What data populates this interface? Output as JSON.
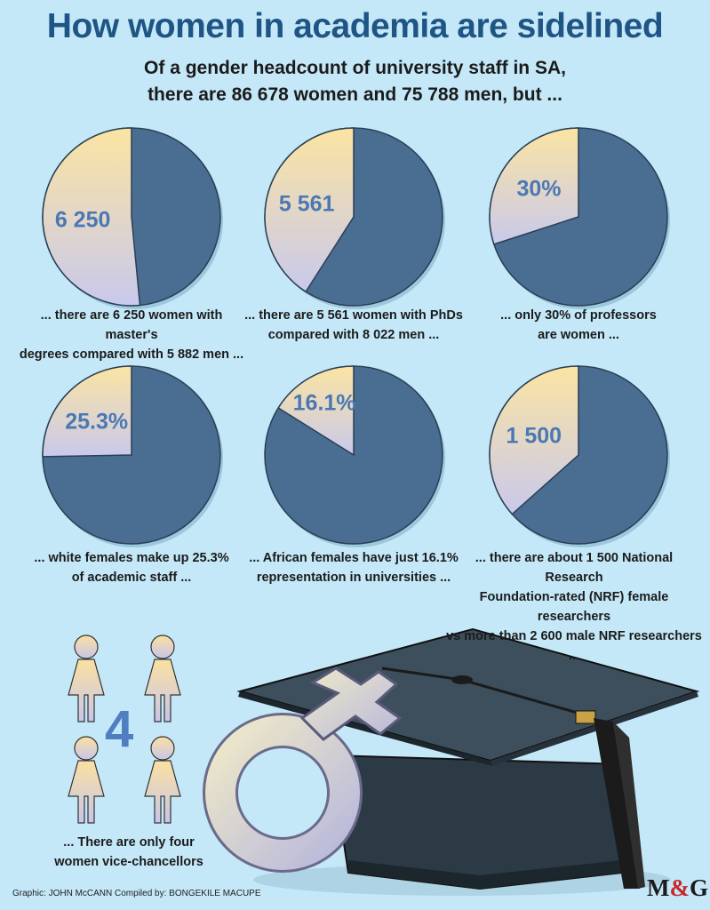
{
  "header": {
    "title": "How women in academia are sidelined",
    "subtitle_line1": "Of a gender headcount of university staff in SA,",
    "subtitle_line2": "there are 86 678 women and 75 788 men, but ..."
  },
  "colors": {
    "background": "#c4e8f8",
    "men_slice": "#4a6d92",
    "women_slice_top": "#fbe4a2",
    "women_slice_bottom": "#c9c9ec"
  },
  "chart_data": [
    {
      "type": "pie",
      "label": "6 250",
      "slices": [
        {
          "name": "women",
          "value": 6250
        },
        {
          "name": "men",
          "value": 5882
        }
      ],
      "caption_lines": [
        "... there are 6 250 women with master's",
        "degrees compared with 5 882 men ..."
      ]
    },
    {
      "type": "pie",
      "label": "5 561",
      "slices": [
        {
          "name": "women",
          "value": 5561
        },
        {
          "name": "men",
          "value": 8022
        }
      ],
      "caption_lines": [
        "... there are 5 561 women with PhDs",
        "compared with 8 022 men ..."
      ]
    },
    {
      "type": "pie",
      "label": "30%",
      "slices": [
        {
          "name": "women",
          "value": 30
        },
        {
          "name": "men",
          "value": 70
        }
      ],
      "caption_lines": [
        "... only 30% of professors",
        "are women ..."
      ]
    },
    {
      "type": "pie",
      "label": "25.3%",
      "slices": [
        {
          "name": "women",
          "value": 25.3
        },
        {
          "name": "men",
          "value": 74.7
        }
      ],
      "caption_lines": [
        "... white females make up 25.3%",
        "of academic staff ..."
      ]
    },
    {
      "type": "pie",
      "label": "16.1%",
      "slices": [
        {
          "name": "women",
          "value": 16.1
        },
        {
          "name": "men",
          "value": 83.9
        }
      ],
      "caption_lines": [
        "... African females have just 16.1%",
        "representation in universities ..."
      ]
    },
    {
      "type": "pie",
      "label": "1 500",
      "slices": [
        {
          "name": "women",
          "value": 1500
        },
        {
          "name": "men",
          "value": 2600
        }
      ],
      "caption_lines": [
        "... there are about 1 500 National Research",
        "Foundation-rated (NRF) female researchers",
        "vs more than 2 600 male NRF researchers ..."
      ]
    }
  ],
  "vice_chancellors": {
    "count": "4",
    "caption_line1": "... There are only four",
    "caption_line2": "women vice-chancellors"
  },
  "footer": {
    "credit": "Graphic: JOHN McCANN  Compiled by: BONGEKILE MACUPE",
    "logo_left": "M",
    "logo_amp": "&",
    "logo_right": "G"
  }
}
